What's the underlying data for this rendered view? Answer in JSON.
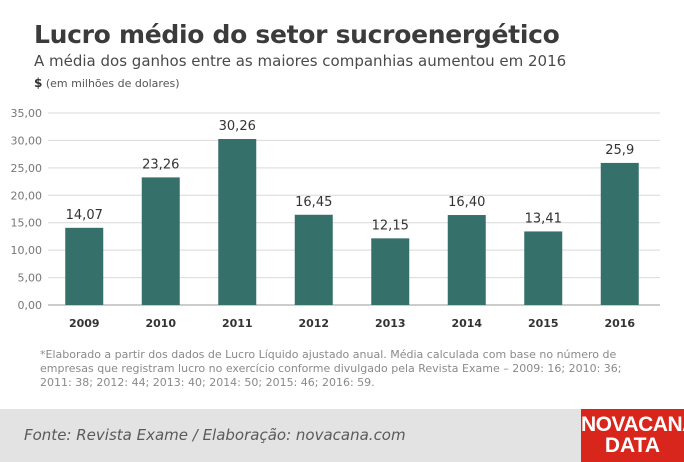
{
  "header": {
    "title": "Lucro médio do setor sucroenergético",
    "subtitle": "A média dos ganhos entre as maiores companhias aumentou em 2016",
    "currency": "$",
    "unit_note": "(em milhões de dolares)"
  },
  "chart_data": {
    "type": "bar",
    "title": "Lucro médio do setor sucroenergético",
    "subtitle": "A média dos ganhos entre as maiores companhias aumentou em 2016",
    "ylabel": "$ (em milhões de dolares)",
    "categories": [
      "2009",
      "2010",
      "2011",
      "2012",
      "2013",
      "2014",
      "2015",
      "2016"
    ],
    "values": [
      14.07,
      23.26,
      30.26,
      16.45,
      12.15,
      16.4,
      13.41,
      25.9
    ],
    "data_labels": [
      "14,07",
      "23,26",
      "30,26",
      "16,45",
      "12,15",
      "16,40",
      "13,41",
      "25,9"
    ],
    "y_ticks": [
      0,
      5,
      10,
      15,
      20,
      25,
      30,
      35
    ],
    "y_tick_labels": [
      "0,00",
      "5,00",
      "10,00",
      "15,00",
      "20,00",
      "25,00",
      "30,00",
      "35,00"
    ],
    "ylim": [
      0,
      35
    ],
    "grid": true,
    "bar_color": "#35706a",
    "grid_color": "#d9d9d9"
  },
  "footnote": "*Elaborado a partir dos dados de Lucro Líquido ajustado anual. Média calculada com base no número de empresas que registram lucro no exercício conforme divulgado pela Revista Exame – 2009: 16; 2010: 36; 2011: 38; 2012: 44; 2013: 40; 2014: 50; 2015: 46; 2016: 59.",
  "footer": {
    "source": "Fonte: Revista Exame / Elaboração: novacana.com",
    "logo_line1": "NOVACANA",
    "logo_line2": "DATA",
    "logo_color": "#d9261c"
  }
}
